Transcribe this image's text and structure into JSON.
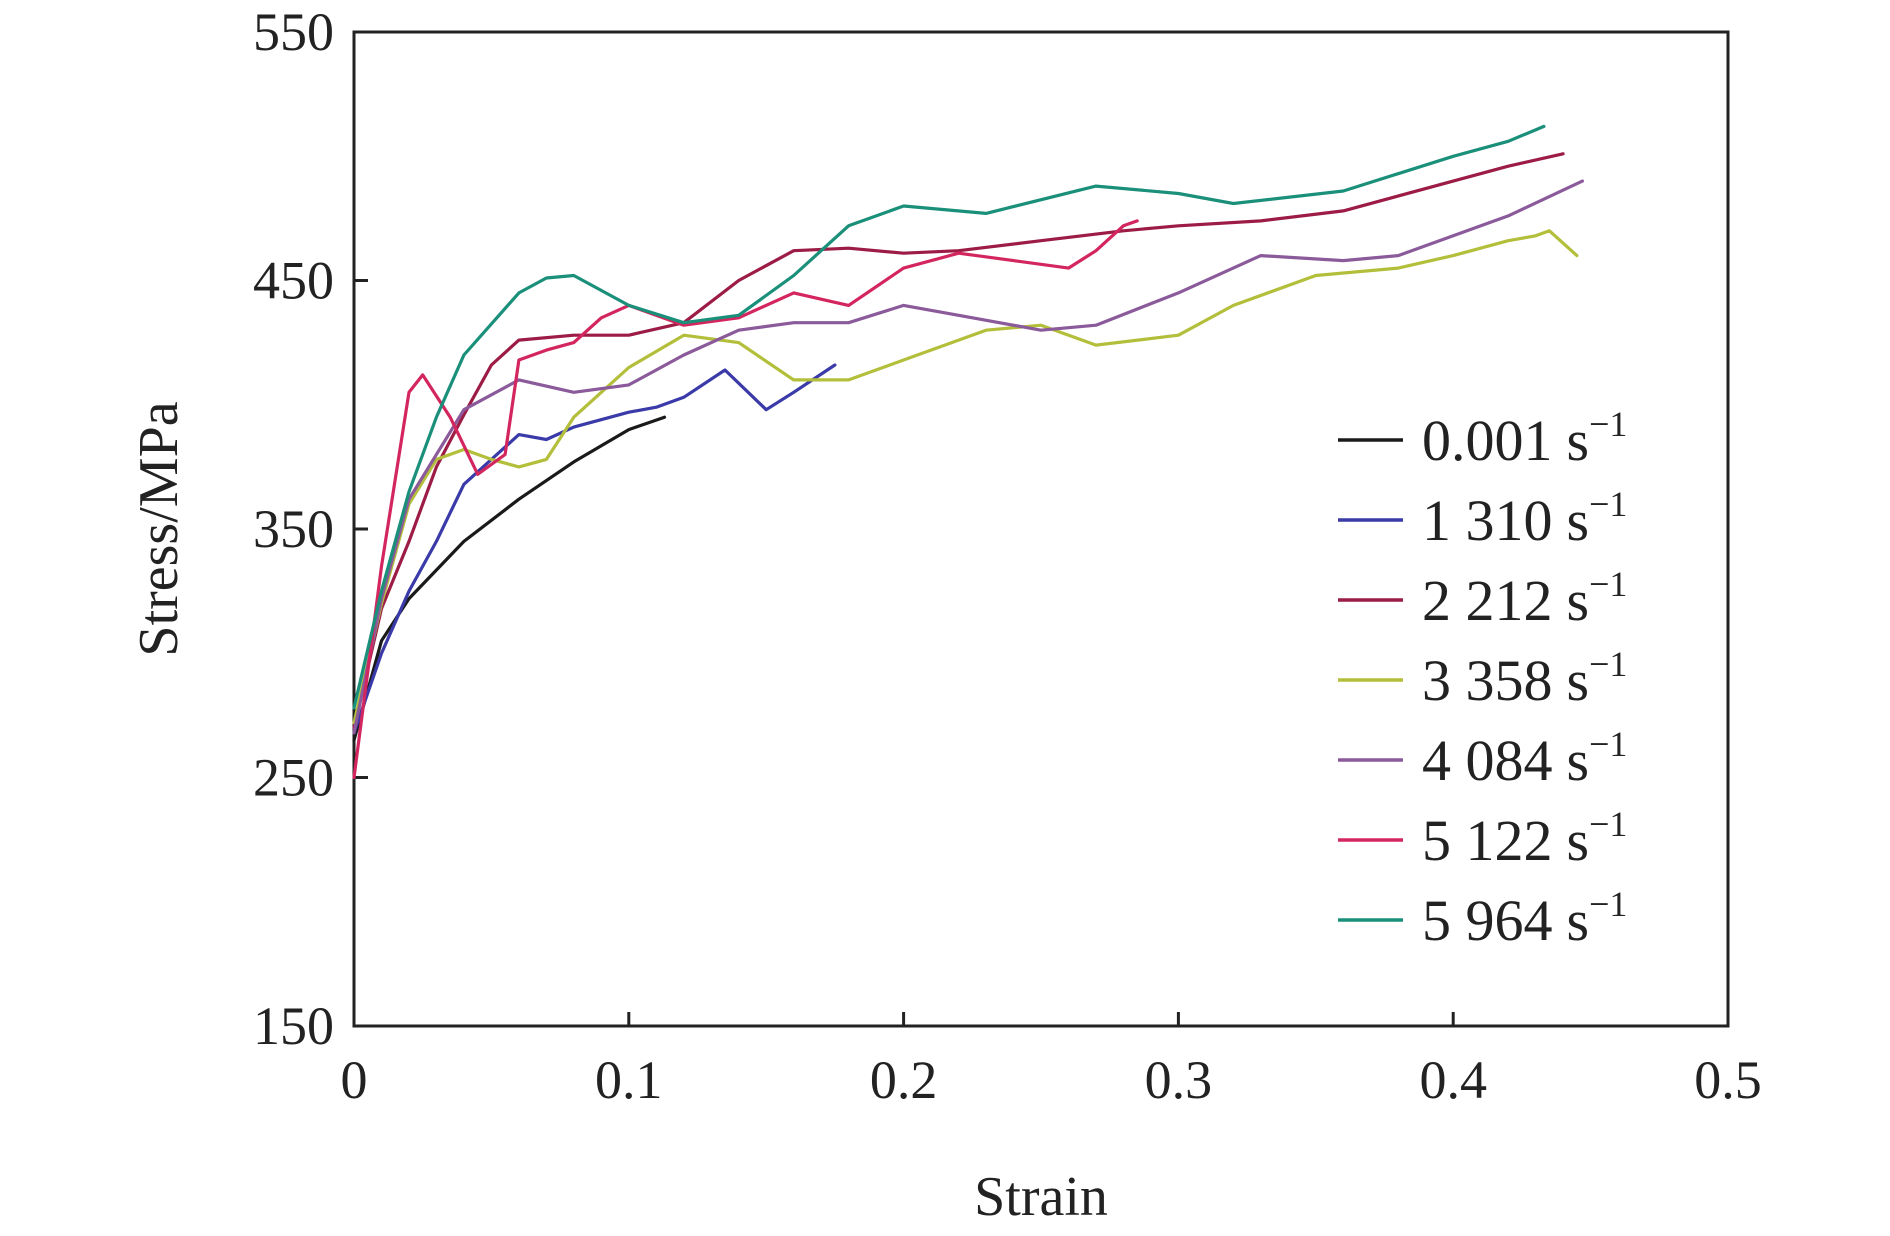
{
  "chart_data": {
    "type": "line",
    "title": "",
    "xlabel": "Strain",
    "ylabel": "Stress/MPa",
    "xlim": [
      0,
      0.5
    ],
    "ylim": [
      150,
      550
    ],
    "xticks": [
      "0",
      "0.1",
      "0.2",
      "0.3",
      "0.4",
      "0.5"
    ],
    "yticks": [
      "150",
      "250",
      "350",
      "450",
      "550"
    ],
    "grid": false,
    "legend_position": "right",
    "legend_unit": "s",
    "legend_exponent": "−1",
    "series": [
      {
        "name": "0.001",
        "color": "#1a1a1a",
        "points": [
          [
            0,
            265
          ],
          [
            0.01,
            305
          ],
          [
            0.02,
            322
          ],
          [
            0.04,
            345
          ],
          [
            0.06,
            362
          ],
          [
            0.08,
            377
          ],
          [
            0.1,
            390
          ],
          [
            0.113,
            395
          ]
        ]
      },
      {
        "name": "1 310",
        "color": "#3a3aa8",
        "points": [
          [
            0,
            268
          ],
          [
            0.01,
            300
          ],
          [
            0.02,
            325
          ],
          [
            0.03,
            345
          ],
          [
            0.04,
            368
          ],
          [
            0.05,
            378
          ],
          [
            0.06,
            388
          ],
          [
            0.07,
            386
          ],
          [
            0.08,
            391
          ],
          [
            0.1,
            397
          ],
          [
            0.11,
            399
          ],
          [
            0.12,
            403
          ],
          [
            0.135,
            414
          ],
          [
            0.15,
            398
          ],
          [
            0.16,
            405
          ],
          [
            0.175,
            416
          ]
        ]
      },
      {
        "name": "2 212",
        "color": "#9c1c45",
        "points": [
          [
            0,
            270
          ],
          [
            0.01,
            318
          ],
          [
            0.02,
            345
          ],
          [
            0.03,
            375
          ],
          [
            0.04,
            396
          ],
          [
            0.05,
            416
          ],
          [
            0.06,
            426
          ],
          [
            0.08,
            428
          ],
          [
            0.1,
            428
          ],
          [
            0.12,
            433
          ],
          [
            0.14,
            450
          ],
          [
            0.16,
            462
          ],
          [
            0.18,
            463
          ],
          [
            0.2,
            461
          ],
          [
            0.22,
            462
          ],
          [
            0.25,
            466
          ],
          [
            0.28,
            470
          ],
          [
            0.3,
            472
          ],
          [
            0.33,
            474
          ],
          [
            0.36,
            478
          ],
          [
            0.4,
            490
          ],
          [
            0.42,
            496
          ],
          [
            0.44,
            501
          ]
        ]
      },
      {
        "name": "3 358",
        "color": "#b3bf3b",
        "points": [
          [
            0,
            272
          ],
          [
            0.01,
            320
          ],
          [
            0.02,
            360
          ],
          [
            0.03,
            378
          ],
          [
            0.04,
            382
          ],
          [
            0.05,
            378
          ],
          [
            0.06,
            375
          ],
          [
            0.07,
            378
          ],
          [
            0.08,
            395
          ],
          [
            0.1,
            415
          ],
          [
            0.12,
            428
          ],
          [
            0.14,
            425
          ],
          [
            0.16,
            410
          ],
          [
            0.18,
            410
          ],
          [
            0.2,
            418
          ],
          [
            0.23,
            430
          ],
          [
            0.25,
            432
          ],
          [
            0.27,
            424
          ],
          [
            0.3,
            428
          ],
          [
            0.32,
            440
          ],
          [
            0.35,
            452
          ],
          [
            0.38,
            455
          ],
          [
            0.4,
            460
          ],
          [
            0.42,
            466
          ],
          [
            0.43,
            468
          ],
          [
            0.435,
            470
          ],
          [
            0.445,
            460
          ]
        ]
      },
      {
        "name": "4 084",
        "color": "#8a5a9a",
        "points": [
          [
            0,
            268
          ],
          [
            0.01,
            322
          ],
          [
            0.02,
            362
          ],
          [
            0.04,
            398
          ],
          [
            0.06,
            410
          ],
          [
            0.08,
            405
          ],
          [
            0.1,
            408
          ],
          [
            0.12,
            420
          ],
          [
            0.14,
            430
          ],
          [
            0.16,
            433
          ],
          [
            0.18,
            433
          ],
          [
            0.2,
            440
          ],
          [
            0.22,
            436
          ],
          [
            0.25,
            430
          ],
          [
            0.27,
            432
          ],
          [
            0.3,
            445
          ],
          [
            0.33,
            460
          ],
          [
            0.36,
            458
          ],
          [
            0.38,
            460
          ],
          [
            0.4,
            468
          ],
          [
            0.42,
            476
          ],
          [
            0.447,
            490
          ]
        ]
      },
      {
        "name": "5 122",
        "color": "#d4265e",
        "points": [
          [
            0,
            250
          ],
          [
            0.01,
            335
          ],
          [
            0.02,
            405
          ],
          [
            0.025,
            412
          ],
          [
            0.035,
            395
          ],
          [
            0.045,
            372
          ],
          [
            0.055,
            380
          ],
          [
            0.06,
            418
          ],
          [
            0.07,
            422
          ],
          [
            0.08,
            425
          ],
          [
            0.09,
            435
          ],
          [
            0.1,
            440
          ],
          [
            0.12,
            432
          ],
          [
            0.14,
            435
          ],
          [
            0.16,
            445
          ],
          [
            0.18,
            440
          ],
          [
            0.2,
            455
          ],
          [
            0.22,
            461
          ],
          [
            0.24,
            458
          ],
          [
            0.26,
            455
          ],
          [
            0.27,
            462
          ],
          [
            0.28,
            472
          ],
          [
            0.285,
            474
          ]
        ]
      },
      {
        "name": "5 964",
        "color": "#1a8f7a",
        "points": [
          [
            0,
            278
          ],
          [
            0.01,
            325
          ],
          [
            0.02,
            365
          ],
          [
            0.03,
            395
          ],
          [
            0.04,
            420
          ],
          [
            0.06,
            445
          ],
          [
            0.07,
            451
          ],
          [
            0.08,
            452
          ],
          [
            0.1,
            440
          ],
          [
            0.12,
            433
          ],
          [
            0.14,
            436
          ],
          [
            0.16,
            452
          ],
          [
            0.18,
            472
          ],
          [
            0.2,
            480
          ],
          [
            0.23,
            477
          ],
          [
            0.27,
            488
          ],
          [
            0.3,
            485
          ],
          [
            0.32,
            481
          ],
          [
            0.36,
            486
          ],
          [
            0.4,
            500
          ],
          [
            0.42,
            506
          ],
          [
            0.433,
            512
          ]
        ]
      }
    ]
  }
}
